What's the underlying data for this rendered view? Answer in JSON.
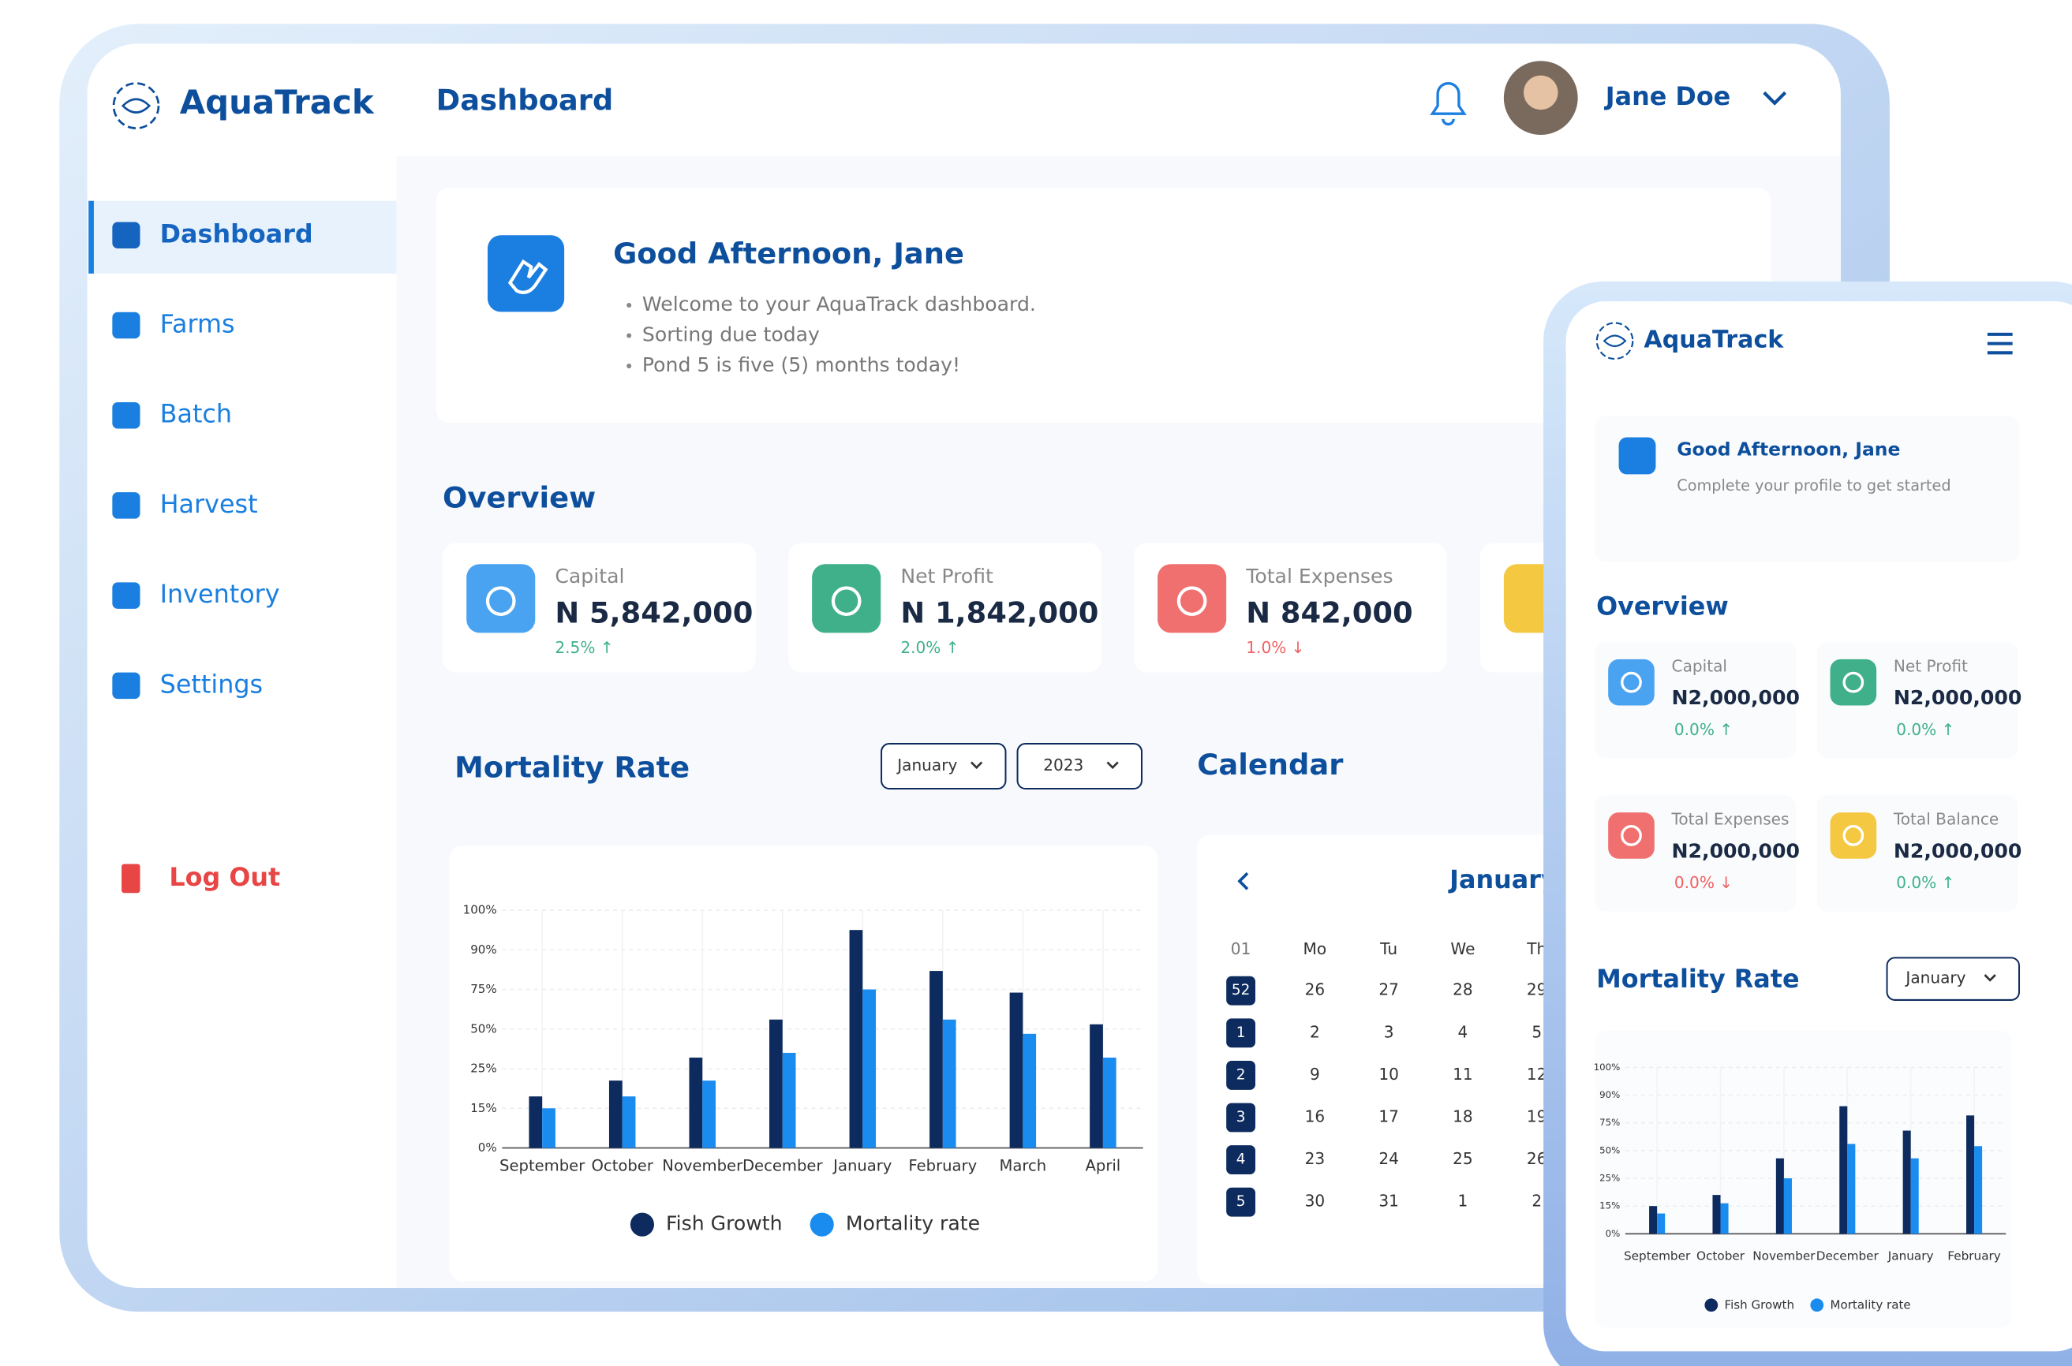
{
  "header": {
    "brand": "AquaTrack",
    "page_title": "Dashboard",
    "user_name": "Jane Doe"
  },
  "sidebar": {
    "items": [
      "Dashboard",
      "Farms",
      "Batch",
      "Harvest",
      "Inventory",
      "Settings"
    ],
    "logout": "Log Out"
  },
  "welcome": {
    "title": "Good Afternoon,  Jane",
    "bullets": [
      "Welcome to your AquaTrack dashboard.",
      "Sorting due today",
      "Pond 5 is five (5) months today!"
    ]
  },
  "overview": {
    "title": "Overview",
    "cards": [
      {
        "label": "Capital",
        "value": "N 5,842,000",
        "change": "2.5% ↑"
      },
      {
        "label": "Net Profit",
        "value": "N 1,842,000",
        "change": "2.0% ↑"
      },
      {
        "label": "Total Expenses",
        "value": "N 842,000",
        "change": "1.0% ↓"
      }
    ]
  },
  "mortality": {
    "title": "Mortality Rate",
    "month": "January",
    "year": "2023",
    "chart": {
      "type": "bar",
      "categories": [
        "September",
        "October",
        "November",
        "December",
        "January",
        "February",
        "March",
        "April"
      ],
      "series": [
        {
          "name": "Fish Growth",
          "color": "#0d2b5e",
          "values": [
            18,
            22,
            32,
            56,
            95,
            82,
            73,
            53
          ]
        },
        {
          "name": "Mortality rate",
          "color": "#1a8cf0",
          "values": [
            15,
            18,
            22,
            35,
            75,
            56,
            47,
            32
          ]
        }
      ],
      "ylim": [
        0,
        100
      ],
      "yticks": [
        {
          "value": 0,
          "label": "0%"
        },
        {
          "value": 15,
          "label": "15%"
        },
        {
          "value": 25,
          "label": "25%"
        },
        {
          "value": 50,
          "label": "50%"
        },
        {
          "value": 75,
          "label": "75%"
        },
        {
          "value": 90,
          "label": "90%"
        },
        {
          "value": 100,
          "label": "100%"
        }
      ],
      "grid": true
    }
  },
  "calendar": {
    "title": "Calendar",
    "month": "January",
    "headers": [
      "01",
      "Mo",
      "Tu",
      "We",
      "Th"
    ],
    "rows": [
      [
        "52",
        "26",
        "27",
        "28",
        "29"
      ],
      [
        "1",
        "2",
        "3",
        "4",
        "5"
      ],
      [
        "2",
        "9",
        "10",
        "11",
        "12"
      ],
      [
        "3",
        "16",
        "17",
        "18",
        "19"
      ],
      [
        "4",
        "23",
        "24",
        "25",
        "26"
      ],
      [
        "5",
        "30",
        "31",
        "1",
        "2"
      ]
    ]
  },
  "mobile": {
    "brand": "AquaTrack",
    "greeting": "Good Afternoon,  Jane",
    "subtitle": "Complete your profile to get started",
    "overview_title": "Overview",
    "cards": [
      {
        "label": "Capital",
        "value": "N2,000,000",
        "change": "0.0% ↑"
      },
      {
        "label": "Net Profit",
        "value": "N2,000,000",
        "change": "0.0% ↑"
      },
      {
        "label": "Total Expenses",
        "value": "N2,000,000",
        "change": "0.0% ↓"
      },
      {
        "label": "Total Balance",
        "value": "N2,000,000",
        "change": "0.0% ↑"
      }
    ],
    "mortality_title": "Mortality Rate",
    "month": "January",
    "chart": {
      "type": "bar",
      "categories": [
        "September",
        "October",
        "November",
        "December",
        "January",
        "February"
      ],
      "series": [
        {
          "name": "Fish Growth",
          "color": "#0d2b5e",
          "values": [
            15,
            19,
            43,
            84,
            68,
            79
          ]
        },
        {
          "name": "Mortality rate",
          "color": "#1a8cf0",
          "values": [
            11,
            16,
            25,
            56,
            43,
            54
          ]
        }
      ],
      "ylim": [
        0,
        100
      ],
      "yticks": [
        {
          "value": 0,
          "label": "0%"
        },
        {
          "value": 15,
          "label": "15%"
        },
        {
          "value": 25,
          "label": "25%"
        },
        {
          "value": 50,
          "label": "50%"
        },
        {
          "value": 75,
          "label": "75%"
        },
        {
          "value": 90,
          "label": "90%"
        },
        {
          "value": 100,
          "label": "100%"
        }
      ],
      "grid": true
    }
  }
}
